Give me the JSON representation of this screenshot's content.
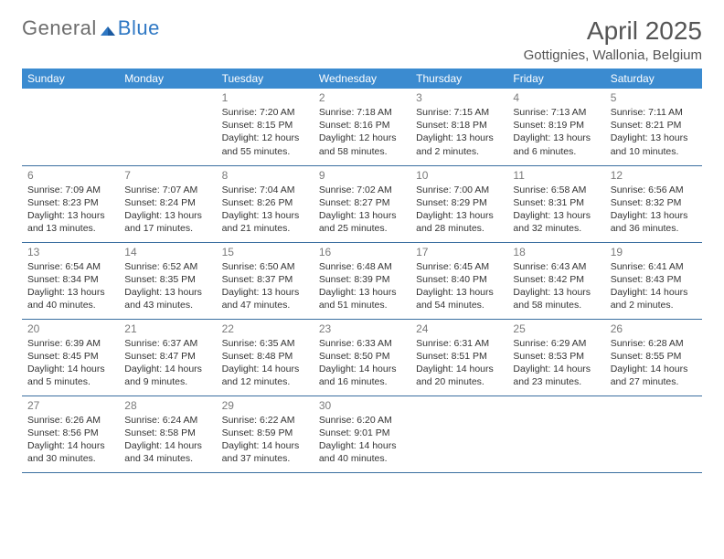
{
  "brand": {
    "part1": "General",
    "part2": "Blue"
  },
  "title": "April 2025",
  "location": "Gottignies, Wallonia, Belgium",
  "colors": {
    "header_bg": "#3b8bd0",
    "header_fg": "#ffffff",
    "row_border": "#3b6fa0",
    "brand_gray": "#6d6d6d",
    "brand_blue": "#2f78c4"
  },
  "weekdays": [
    "Sunday",
    "Monday",
    "Tuesday",
    "Wednesday",
    "Thursday",
    "Friday",
    "Saturday"
  ],
  "weeks": [
    [
      null,
      null,
      {
        "d": "1",
        "sr": "7:20 AM",
        "ss": "8:15 PM",
        "dl": "12 hours and 55 minutes."
      },
      {
        "d": "2",
        "sr": "7:18 AM",
        "ss": "8:16 PM",
        "dl": "12 hours and 58 minutes."
      },
      {
        "d": "3",
        "sr": "7:15 AM",
        "ss": "8:18 PM",
        "dl": "13 hours and 2 minutes."
      },
      {
        "d": "4",
        "sr": "7:13 AM",
        "ss": "8:19 PM",
        "dl": "13 hours and 6 minutes."
      },
      {
        "d": "5",
        "sr": "7:11 AM",
        "ss": "8:21 PM",
        "dl": "13 hours and 10 minutes."
      }
    ],
    [
      {
        "d": "6",
        "sr": "7:09 AM",
        "ss": "8:23 PM",
        "dl": "13 hours and 13 minutes."
      },
      {
        "d": "7",
        "sr": "7:07 AM",
        "ss": "8:24 PM",
        "dl": "13 hours and 17 minutes."
      },
      {
        "d": "8",
        "sr": "7:04 AM",
        "ss": "8:26 PM",
        "dl": "13 hours and 21 minutes."
      },
      {
        "d": "9",
        "sr": "7:02 AM",
        "ss": "8:27 PM",
        "dl": "13 hours and 25 minutes."
      },
      {
        "d": "10",
        "sr": "7:00 AM",
        "ss": "8:29 PM",
        "dl": "13 hours and 28 minutes."
      },
      {
        "d": "11",
        "sr": "6:58 AM",
        "ss": "8:31 PM",
        "dl": "13 hours and 32 minutes."
      },
      {
        "d": "12",
        "sr": "6:56 AM",
        "ss": "8:32 PM",
        "dl": "13 hours and 36 minutes."
      }
    ],
    [
      {
        "d": "13",
        "sr": "6:54 AM",
        "ss": "8:34 PM",
        "dl": "13 hours and 40 minutes."
      },
      {
        "d": "14",
        "sr": "6:52 AM",
        "ss": "8:35 PM",
        "dl": "13 hours and 43 minutes."
      },
      {
        "d": "15",
        "sr": "6:50 AM",
        "ss": "8:37 PM",
        "dl": "13 hours and 47 minutes."
      },
      {
        "d": "16",
        "sr": "6:48 AM",
        "ss": "8:39 PM",
        "dl": "13 hours and 51 minutes."
      },
      {
        "d": "17",
        "sr": "6:45 AM",
        "ss": "8:40 PM",
        "dl": "13 hours and 54 minutes."
      },
      {
        "d": "18",
        "sr": "6:43 AM",
        "ss": "8:42 PM",
        "dl": "13 hours and 58 minutes."
      },
      {
        "d": "19",
        "sr": "6:41 AM",
        "ss": "8:43 PM",
        "dl": "14 hours and 2 minutes."
      }
    ],
    [
      {
        "d": "20",
        "sr": "6:39 AM",
        "ss": "8:45 PM",
        "dl": "14 hours and 5 minutes."
      },
      {
        "d": "21",
        "sr": "6:37 AM",
        "ss": "8:47 PM",
        "dl": "14 hours and 9 minutes."
      },
      {
        "d": "22",
        "sr": "6:35 AM",
        "ss": "8:48 PM",
        "dl": "14 hours and 12 minutes."
      },
      {
        "d": "23",
        "sr": "6:33 AM",
        "ss": "8:50 PM",
        "dl": "14 hours and 16 minutes."
      },
      {
        "d": "24",
        "sr": "6:31 AM",
        "ss": "8:51 PM",
        "dl": "14 hours and 20 minutes."
      },
      {
        "d": "25",
        "sr": "6:29 AM",
        "ss": "8:53 PM",
        "dl": "14 hours and 23 minutes."
      },
      {
        "d": "26",
        "sr": "6:28 AM",
        "ss": "8:55 PM",
        "dl": "14 hours and 27 minutes."
      }
    ],
    [
      {
        "d": "27",
        "sr": "6:26 AM",
        "ss": "8:56 PM",
        "dl": "14 hours and 30 minutes."
      },
      {
        "d": "28",
        "sr": "6:24 AM",
        "ss": "8:58 PM",
        "dl": "14 hours and 34 minutes."
      },
      {
        "d": "29",
        "sr": "6:22 AM",
        "ss": "8:59 PM",
        "dl": "14 hours and 37 minutes."
      },
      {
        "d": "30",
        "sr": "6:20 AM",
        "ss": "9:01 PM",
        "dl": "14 hours and 40 minutes."
      },
      null,
      null,
      null
    ]
  ],
  "labels": {
    "sunrise": "Sunrise: ",
    "sunset": "Sunset: ",
    "daylight": "Daylight: "
  }
}
